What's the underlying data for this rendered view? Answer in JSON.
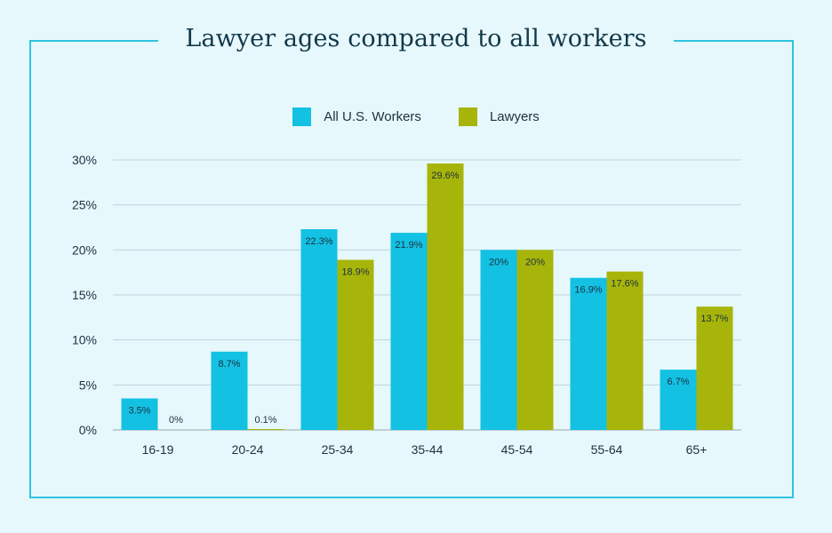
{
  "chart_data": {
    "type": "bar",
    "title": "Lawyer ages compared to all workers",
    "categories": [
      "16-19",
      "20-24",
      "25-34",
      "35-44",
      "45-54",
      "55-64",
      "65+"
    ],
    "series": [
      {
        "name": "All U.S. Workers",
        "color": "#13c1e3",
        "values": [
          3.5,
          8.7,
          22.3,
          21.9,
          20,
          16.9,
          6.7
        ],
        "labels": [
          "3.5%",
          "8.7%",
          "22.3%",
          "21.9%",
          "20%",
          "16.9%",
          "6.7%"
        ]
      },
      {
        "name": "Lawyers",
        "color": "#a7b50a",
        "values": [
          0,
          0.1,
          18.9,
          29.6,
          20,
          17.6,
          13.7
        ],
        "labels": [
          "0%",
          "0.1%",
          "18.9%",
          "29.6%",
          "20%",
          "17.6%",
          "13.7%"
        ]
      }
    ],
    "ylim": [
      0,
      30
    ],
    "yticks": [
      0,
      5,
      10,
      15,
      20,
      25,
      30
    ],
    "ytick_labels": [
      "0%",
      "5%",
      "10%",
      "15%",
      "20%",
      "25%",
      "30%"
    ],
    "xlabel": "",
    "ylabel": "",
    "grid": true,
    "legend_position": "top-center"
  }
}
